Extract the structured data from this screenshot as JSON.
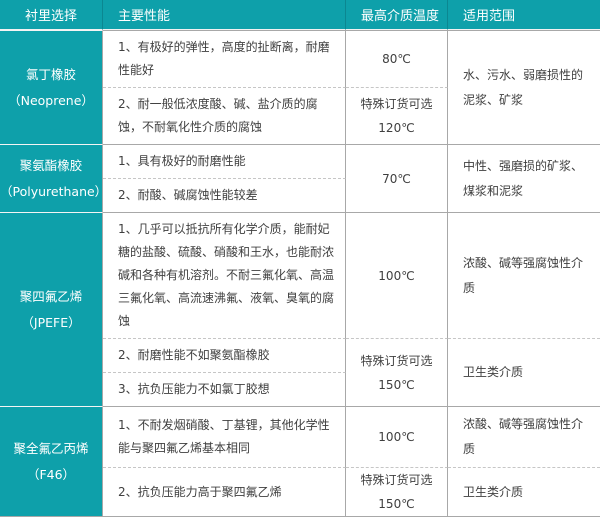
{
  "header": {
    "columns": [
      "衬里选择",
      "主要性能",
      "最高介质温度",
      "适用范围"
    ]
  },
  "rows": [
    {
      "material": {
        "name": "氯丁橡胶",
        "code": "（Neoprene）"
      },
      "performances": [
        "1、有极好的弹性，高度的扯断离，耐磨性能好",
        "2、耐一般低浓度酸、碱、盐介质的腐蚀，不耐氧化性介质的腐蚀"
      ],
      "temperatures": [
        {
          "note": "",
          "value": "80℃"
        },
        {
          "note": "特殊订货可选",
          "value": "120℃"
        }
      ],
      "ranges": [
        "水、污水、弱磨损性的泥浆、矿浆"
      ]
    },
    {
      "material": {
        "name": "聚氨酯橡胶",
        "code": "（Polyurethane）"
      },
      "performances": [
        "1、具有极好的耐磨性能",
        "2、耐酸、碱腐蚀性能较差"
      ],
      "temperatures": [
        {
          "note": "",
          "value": "70℃"
        }
      ],
      "ranges": [
        "中性、强磨损的矿浆、煤浆和泥浆"
      ]
    },
    {
      "material": {
        "name": "聚四氟乙烯",
        "code": "（JPEFE）"
      },
      "performances": [
        "1、几乎可以抵抗所有化学介质，能耐妃糖的盐酸、硫酸、硝酸和王水，也能耐浓碱和各种有机溶剂。不耐三氟化氧、高温三氟化氧、高流速沸氟、液氧、臭氧的腐蚀",
        "2、耐磨性能不如聚氨酯橡胶",
        "3、抗负压能力不如氯丁胶想"
      ],
      "temperatures": [
        {
          "note": "",
          "value": "100℃"
        },
        {
          "note": "特殊订货可选",
          "value": "150℃"
        }
      ],
      "ranges": [
        "浓酸、碱等强腐蚀性介质",
        "卫生类介质"
      ]
    },
    {
      "material": {
        "name": "聚全氟乙丙烯",
        "code": "（F46）"
      },
      "performances": [
        "1、不耐发烟硝酸、丁基锂，其他化学性能与聚四氟乙烯基本相同",
        "2、抗负压能力高于聚四氟乙烯"
      ],
      "temperatures": [
        {
          "note": "",
          "value": "100℃"
        },
        {
          "note": "特殊订货可选",
          "value": "150℃"
        }
      ],
      "ranges": [
        "浓酸、碱等强腐蚀性介质",
        "卫生类介质"
      ]
    }
  ],
  "colors": {
    "header_bg": "#0ea0aa",
    "header_text": "#ffffff",
    "body_text": "#3f3f3f",
    "solid_border": "#a8a8a8",
    "dashed_border": "#c6c6c6"
  }
}
